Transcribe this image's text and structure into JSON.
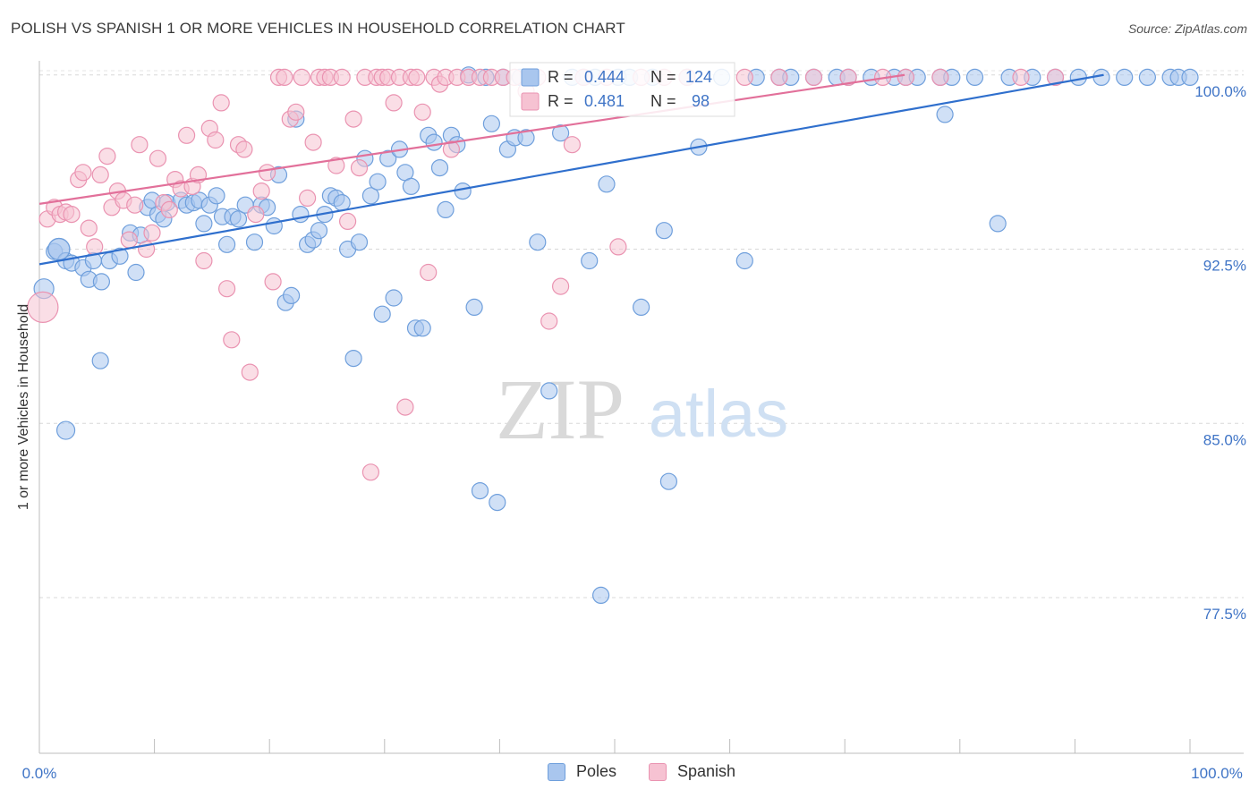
{
  "title": "POLISH VS SPANISH 1 OR MORE VEHICLES IN HOUSEHOLD CORRELATION CHART",
  "source": "Source: ZipAtlas.com",
  "watermark": {
    "zip": "ZIP",
    "atlas": "atlas"
  },
  "colors": {
    "poles_fill": "#a9c6ee",
    "poles_stroke": "#6f9fdc",
    "poles_line": "#2f6fcd",
    "spanish_fill": "#f6c2d2",
    "spanish_stroke": "#ea93b1",
    "spanish_line": "#e2709a",
    "tick_label": "#3f74c6",
    "grid": "#d8d8d8"
  },
  "legend_top": {
    "poles": {
      "r_label": "R = ",
      "r_value": "0.444",
      "n_label": "N = ",
      "n_value": "124"
    },
    "spanish": {
      "r_label": "R = ",
      "r_value": "0.481",
      "n_label": "N = ",
      "n_value": "98"
    }
  },
  "chart_data": {
    "type": "scatter",
    "title": "POLISH VS SPANISH 1 OR MORE VEHICLES IN HOUSEHOLD CORRELATION CHART",
    "xlabel": "",
    "ylabel": "1 or more Vehicles in Household",
    "xlim": [
      0,
      100
    ],
    "ylim": [
      70.8,
      101.3
    ],
    "x_tick_labels": [
      "0.0%",
      "100.0%"
    ],
    "y_ticks": [
      77.5,
      85.0,
      92.5,
      100.0
    ],
    "y_tick_labels": [
      "77.5%",
      "85.0%",
      "92.5%",
      "100.0%"
    ],
    "grid": "horizontal dashed",
    "legend": [
      "Poles",
      "Spanish"
    ],
    "series": [
      {
        "name": "Poles",
        "trend": {
          "x": [
            0,
            92.5
          ],
          "y": [
            91.85,
            100.0
          ]
        },
        "points": [
          [
            0.4,
            90.8
          ],
          [
            1.3,
            92.4
          ],
          [
            1.7,
            92.5
          ],
          [
            2.3,
            92.0
          ],
          [
            2.8,
            91.9
          ],
          [
            3.8,
            91.7
          ],
          [
            4.3,
            91.2
          ],
          [
            4.7,
            92.0
          ],
          [
            5.4,
            91.1
          ],
          [
            5.3,
            87.7
          ],
          [
            6.1,
            92.0
          ],
          [
            7.0,
            92.2
          ],
          [
            7.9,
            93.2
          ],
          [
            8.4,
            91.5
          ],
          [
            8.8,
            93.1
          ],
          [
            9.4,
            94.3
          ],
          [
            9.8,
            94.6
          ],
          [
            10.3,
            94.0
          ],
          [
            10.8,
            93.8
          ],
          [
            11.1,
            94.5
          ],
          [
            12.3,
            94.6
          ],
          [
            12.8,
            94.4
          ],
          [
            13.4,
            94.5
          ],
          [
            13.9,
            94.6
          ],
          [
            14.3,
            93.6
          ],
          [
            14.8,
            94.4
          ],
          [
            15.4,
            94.8
          ],
          [
            15.9,
            93.9
          ],
          [
            16.3,
            92.7
          ],
          [
            16.8,
            93.9
          ],
          [
            17.3,
            93.8
          ],
          [
            17.9,
            94.4
          ],
          [
            18.7,
            92.8
          ],
          [
            19.3,
            94.4
          ],
          [
            19.8,
            94.3
          ],
          [
            20.4,
            93.5
          ],
          [
            20.8,
            95.7
          ],
          [
            21.4,
            90.2
          ],
          [
            21.9,
            90.5
          ],
          [
            22.3,
            98.1
          ],
          [
            22.7,
            94.0
          ],
          [
            23.3,
            92.7
          ],
          [
            23.8,
            92.9
          ],
          [
            24.3,
            93.3
          ],
          [
            24.8,
            94.0
          ],
          [
            25.3,
            94.8
          ],
          [
            25.8,
            94.7
          ],
          [
            26.3,
            94.5
          ],
          [
            26.8,
            92.5
          ],
          [
            27.3,
            87.8
          ],
          [
            27.8,
            92.8
          ],
          [
            28.3,
            96.4
          ],
          [
            28.8,
            94.8
          ],
          [
            29.4,
            95.4
          ],
          [
            29.8,
            89.7
          ],
          [
            30.3,
            96.4
          ],
          [
            30.8,
            90.4
          ],
          [
            31.3,
            96.8
          ],
          [
            31.8,
            95.8
          ],
          [
            32.3,
            95.2
          ],
          [
            32.7,
            89.1
          ],
          [
            33.3,
            89.1
          ],
          [
            33.8,
            97.4
          ],
          [
            34.3,
            97.1
          ],
          [
            34.8,
            96.0
          ],
          [
            35.3,
            94.2
          ],
          [
            35.8,
            97.4
          ],
          [
            36.3,
            97.0
          ],
          [
            36.8,
            95.0
          ],
          [
            37.3,
            100.0
          ],
          [
            37.8,
            90.0
          ],
          [
            38.3,
            82.1
          ],
          [
            38.8,
            99.9
          ],
          [
            39.3,
            97.9
          ],
          [
            39.8,
            81.6
          ],
          [
            40.3,
            99.9
          ],
          [
            40.7,
            96.8
          ],
          [
            41.3,
            97.3
          ],
          [
            41.8,
            99.9
          ],
          [
            42.3,
            97.3
          ],
          [
            43.3,
            92.8
          ],
          [
            44.3,
            86.4
          ],
          [
            45.3,
            97.5
          ],
          [
            46.3,
            99.9
          ],
          [
            47.3,
            99.9
          ],
          [
            47.8,
            92.0
          ],
          [
            48.3,
            99.9
          ],
          [
            48.8,
            77.6
          ],
          [
            49.3,
            95.3
          ],
          [
            50.3,
            99.9
          ],
          [
            51.3,
            99.9
          ],
          [
            52.3,
            90.0
          ],
          [
            53.3,
            99.9
          ],
          [
            54.3,
            93.3
          ],
          [
            54.7,
            82.5
          ],
          [
            56.3,
            99.9
          ],
          [
            57.3,
            96.9
          ],
          [
            59.3,
            99.9
          ],
          [
            61.3,
            92.0
          ],
          [
            62.3,
            99.9
          ],
          [
            64.3,
            99.9
          ],
          [
            65.3,
            99.9
          ],
          [
            67.3,
            99.9
          ],
          [
            69.3,
            99.9
          ],
          [
            70.3,
            99.9
          ],
          [
            72.3,
            99.9
          ],
          [
            74.3,
            99.9
          ],
          [
            75.3,
            99.9
          ],
          [
            76.3,
            99.9
          ],
          [
            78.3,
            99.9
          ],
          [
            78.7,
            98.3
          ],
          [
            79.3,
            99.9
          ],
          [
            81.3,
            99.9
          ],
          [
            83.3,
            93.6
          ],
          [
            84.3,
            99.9
          ],
          [
            86.3,
            99.9
          ],
          [
            88.3,
            99.9
          ],
          [
            90.3,
            99.9
          ],
          [
            92.3,
            99.9
          ],
          [
            94.3,
            99.9
          ],
          [
            96.3,
            99.9
          ],
          [
            98.3,
            99.9
          ],
          [
            99.0,
            99.9
          ],
          [
            100.0,
            99.9
          ]
        ]
      },
      {
        "name": "Spanish",
        "trend": {
          "x": [
            0,
            75.2
          ],
          "y": [
            94.45,
            100.0
          ]
        },
        "points": [
          [
            0.3,
            90.0
          ],
          [
            0.7,
            93.8
          ],
          [
            1.3,
            94.3
          ],
          [
            1.8,
            94.0
          ],
          [
            2.3,
            94.1
          ],
          [
            2.8,
            94.0
          ],
          [
            3.4,
            95.5
          ],
          [
            3.8,
            95.8
          ],
          [
            4.3,
            93.4
          ],
          [
            4.8,
            92.6
          ],
          [
            5.3,
            95.7
          ],
          [
            5.9,
            96.5
          ],
          [
            6.3,
            94.3
          ],
          [
            6.8,
            95.0
          ],
          [
            7.3,
            94.6
          ],
          [
            7.8,
            92.9
          ],
          [
            8.3,
            94.4
          ],
          [
            8.7,
            97.0
          ],
          [
            9.3,
            92.5
          ],
          [
            9.8,
            93.2
          ],
          [
            10.3,
            96.4
          ],
          [
            10.8,
            94.5
          ],
          [
            11.3,
            94.2
          ],
          [
            11.8,
            95.5
          ],
          [
            12.3,
            95.1
          ],
          [
            12.8,
            97.4
          ],
          [
            13.3,
            95.2
          ],
          [
            13.8,
            95.7
          ],
          [
            14.3,
            92.0
          ],
          [
            14.8,
            97.7
          ],
          [
            15.3,
            97.2
          ],
          [
            15.8,
            98.8
          ],
          [
            16.3,
            90.8
          ],
          [
            16.7,
            88.6
          ],
          [
            17.3,
            97.0
          ],
          [
            17.8,
            96.8
          ],
          [
            18.3,
            87.2
          ],
          [
            18.8,
            94.0
          ],
          [
            19.3,
            95.0
          ],
          [
            19.8,
            95.8
          ],
          [
            20.3,
            91.1
          ],
          [
            20.8,
            99.9
          ],
          [
            21.3,
            99.9
          ],
          [
            21.8,
            98.1
          ],
          [
            22.3,
            98.4
          ],
          [
            22.8,
            99.9
          ],
          [
            23.3,
            94.7
          ],
          [
            23.8,
            97.1
          ],
          [
            24.3,
            99.9
          ],
          [
            24.8,
            99.9
          ],
          [
            25.3,
            99.9
          ],
          [
            25.8,
            96.1
          ],
          [
            26.3,
            99.9
          ],
          [
            26.8,
            93.7
          ],
          [
            27.3,
            98.1
          ],
          [
            27.8,
            96.0
          ],
          [
            28.3,
            99.9
          ],
          [
            28.8,
            82.9
          ],
          [
            29.3,
            99.9
          ],
          [
            29.8,
            99.9
          ],
          [
            30.3,
            99.9
          ],
          [
            30.8,
            98.8
          ],
          [
            31.3,
            99.9
          ],
          [
            31.8,
            85.7
          ],
          [
            32.3,
            99.9
          ],
          [
            32.8,
            99.9
          ],
          [
            33.3,
            98.4
          ],
          [
            33.8,
            91.5
          ],
          [
            34.3,
            99.9
          ],
          [
            34.8,
            99.6
          ],
          [
            35.3,
            99.9
          ],
          [
            35.8,
            96.8
          ],
          [
            36.3,
            99.9
          ],
          [
            37.3,
            99.9
          ],
          [
            38.3,
            99.9
          ],
          [
            39.3,
            99.9
          ],
          [
            40.3,
            99.9
          ],
          [
            41.3,
            99.9
          ],
          [
            42.3,
            99.3
          ],
          [
            43.3,
            99.9
          ],
          [
            44.3,
            89.4
          ],
          [
            45.3,
            90.9
          ],
          [
            46.3,
            97.0
          ],
          [
            47.3,
            99.9
          ],
          [
            49.3,
            99.9
          ],
          [
            50.3,
            92.6
          ],
          [
            52.3,
            99.9
          ],
          [
            54.3,
            99.9
          ],
          [
            56.3,
            99.9
          ],
          [
            61.3,
            99.9
          ],
          [
            64.3,
            99.9
          ],
          [
            67.3,
            99.9
          ],
          [
            70.3,
            99.9
          ],
          [
            73.3,
            99.9
          ],
          [
            75.3,
            99.9
          ],
          [
            78.3,
            99.9
          ],
          [
            85.3,
            99.9
          ],
          [
            88.3,
            99.9
          ]
        ]
      }
    ]
  }
}
